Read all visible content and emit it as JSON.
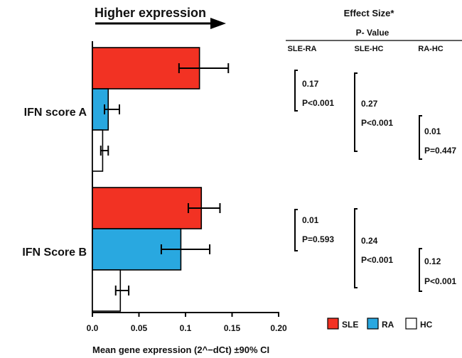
{
  "chart_data": {
    "type": "bar",
    "orientation": "horizontal",
    "categories": [
      "IFN score A",
      "IFN Score B"
    ],
    "series": [
      {
        "name": "SLE",
        "color": "#f23223",
        "values": [
          0.115,
          0.117
        ],
        "ci": [
          [
            0.093,
            0.146
          ],
          [
            0.103,
            0.137
          ]
        ]
      },
      {
        "name": "RA",
        "color": "#29a8e0",
        "values": [
          0.017,
          0.095
        ],
        "ci": [
          [
            0.013,
            0.029
          ],
          [
            0.074,
            0.126
          ]
        ]
      },
      {
        "name": "HC",
        "color": "#ffffff",
        "values": [
          0.011,
          0.03
        ],
        "ci": [
          [
            0.009,
            0.017
          ],
          [
            0.025,
            0.039
          ]
        ]
      }
    ],
    "xlim": [
      0.0,
      0.2
    ],
    "xticks": [
      "0.0",
      "0.05",
      "0.1",
      "0.15",
      "0.20"
    ],
    "xlabel": "Mean gene expression (2^−dCt) ±90% CI",
    "arrow_label": "Higher expression",
    "legend_position": "bottom-right",
    "grid": false
  },
  "stats_table": {
    "title": "Effect Size*",
    "subtitle": "P- Value",
    "columns": [
      "SLE-RA",
      "SLE-HC",
      "RA-HC"
    ],
    "groups": [
      {
        "category": "IFN score A",
        "sle_ra": [
          "0.17",
          "P<0.001"
        ],
        "sle_hc": [
          "0.27",
          "P<0.001"
        ],
        "ra_hc": [
          "0.01",
          "P=0.447"
        ]
      },
      {
        "category": "IFN Score B",
        "sle_ra": [
          "0.01",
          "P=0.593"
        ],
        "sle_hc": [
          "0.24",
          "P<0.001"
        ],
        "ra_hc": [
          "0.12",
          "P<0.001"
        ]
      }
    ]
  }
}
